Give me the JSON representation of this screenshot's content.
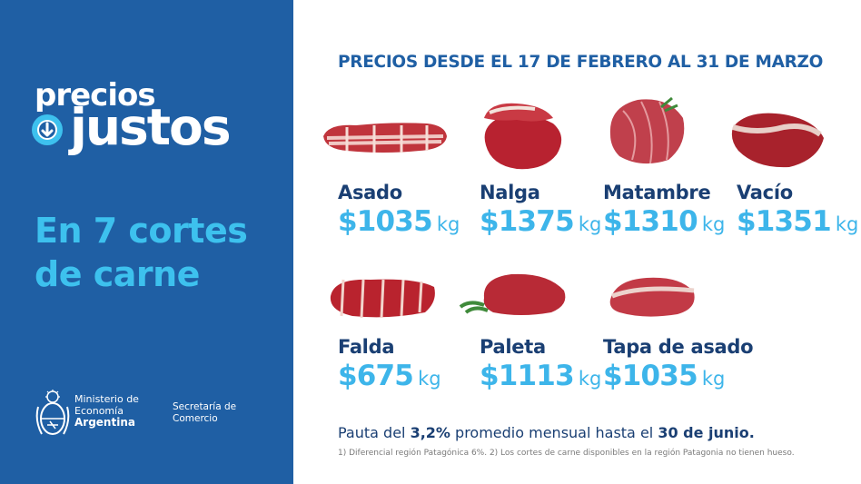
{
  "brand": {
    "logo_top": "precios",
    "logo_bottom": "justos"
  },
  "headline": {
    "line1": "En 7 cortes",
    "line2": "de carne"
  },
  "footer": {
    "ministry_line1": "Ministerio de",
    "ministry_line2": "Economía",
    "ministry_line3": "Argentina",
    "secretary_line1": "Secretaría de",
    "secretary_line2": "Comercio"
  },
  "title": "PRECIOS DESDE EL 17 DE FEBRERO AL 31 DE MARZO",
  "cuts": [
    {
      "name": "Asado",
      "price": "$1035",
      "unit": "kg"
    },
    {
      "name": "Nalga",
      "price": "$1375",
      "unit": "kg"
    },
    {
      "name": "Matambre",
      "price": "$1310",
      "unit": "kg"
    },
    {
      "name": "Vacío",
      "price": "$1351",
      "unit": "kg"
    },
    {
      "name": "Falda",
      "price": "$675",
      "unit": "kg"
    },
    {
      "name": "Paleta",
      "price": "$1113",
      "unit": "kg"
    },
    {
      "name": "Tapa de asado",
      "price": "$1035",
      "unit": "kg"
    }
  ],
  "pauta": {
    "pre": "Pauta del ",
    "percent": "3,2%",
    "mid": " promedio mensual hasta el ",
    "date": "30 de junio."
  },
  "footnote": "1) Diferencial región Patagónica 6%. 2) Los cortes de carne disponibles en la región Patagonia no tienen hueso.",
  "colors": {
    "panel": "#1f5fa4",
    "accent": "#3dc1ee",
    "dark_text": "#1a3f73",
    "price": "#3db5ea"
  }
}
